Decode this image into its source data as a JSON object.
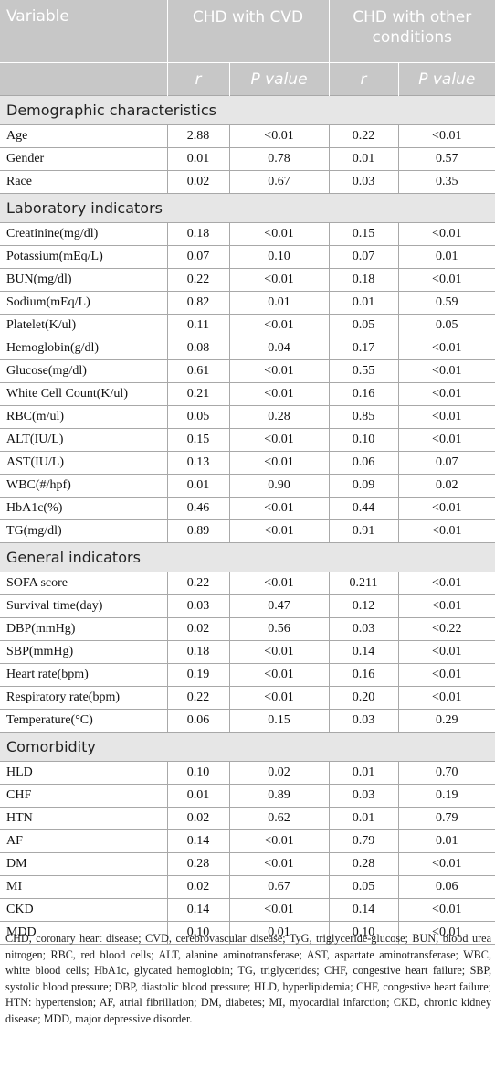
{
  "header": {
    "variable": "Variable",
    "group1": "CHD with CVD",
    "group2": "CHD with other conditions",
    "r": "r",
    "p": "P value"
  },
  "sections": [
    {
      "title": "Demographic characteristics",
      "rows": [
        [
          "Age",
          "2.88",
          "<0.01",
          "0.22",
          "<0.01"
        ],
        [
          "Gender",
          "0.01",
          "0.78",
          "0.01",
          "0.57"
        ],
        [
          "Race",
          "0.02",
          "0.67",
          "0.03",
          "0.35"
        ]
      ]
    },
    {
      "title": "Laboratory indicators",
      "rows": [
        [
          "Creatinine(mg/dl)",
          "0.18",
          "<0.01",
          "0.15",
          "<0.01"
        ],
        [
          "Potassium(mEq/L)",
          "0.07",
          "0.10",
          "0.07",
          "0.01"
        ],
        [
          "BUN(mg/dl)",
          "0.22",
          "<0.01",
          "0.18",
          "<0.01"
        ],
        [
          "Sodium(mEq/L)",
          "0.82",
          "0.01",
          "0.01",
          "0.59"
        ],
        [
          "Platelet(K/ul)",
          "0.11",
          "<0.01",
          "0.05",
          "0.05"
        ],
        [
          "Hemoglobin(g/dl)",
          "0.08",
          "0.04",
          "0.17",
          "<0.01"
        ],
        [
          "Glucose(mg/dl)",
          "0.61",
          "<0.01",
          "0.55",
          "<0.01"
        ],
        [
          "White Cell Count(K/ul)",
          "0.21",
          "<0.01",
          "0.16",
          "<0.01"
        ],
        [
          "RBC(m/ul)",
          "0.05",
          "0.28",
          "0.85",
          "<0.01"
        ],
        [
          "ALT(IU/L)",
          "0.15",
          "<0.01",
          "0.10",
          "<0.01"
        ],
        [
          "AST(IU/L)",
          "0.13",
          "<0.01",
          "0.06",
          "0.07"
        ],
        [
          "WBC(#/hpf)",
          "0.01",
          "0.90",
          "0.09",
          "0.02"
        ],
        [
          "HbA1c(%)",
          "0.46",
          "<0.01",
          "0.44",
          "<0.01"
        ],
        [
          "TG(mg/dl)",
          "0.89",
          "<0.01",
          "0.91",
          "<0.01"
        ]
      ]
    },
    {
      "title": "General indicators",
      "rows": [
        [
          "SOFA score",
          "0.22",
          "<0.01",
          "0.211",
          "<0.01"
        ],
        [
          "Survival time(day)",
          "0.03",
          "0.47",
          "0.12",
          "<0.01"
        ],
        [
          "DBP(mmHg)",
          "0.02",
          "0.56",
          "0.03",
          "<0.22"
        ],
        [
          "SBP(mmHg)",
          "0.18",
          "<0.01",
          "0.14",
          "<0.01"
        ],
        [
          "Heart rate(bpm)",
          "0.19",
          "<0.01",
          "0.16",
          "<0.01"
        ],
        [
          "Respiratory rate(bpm)",
          "0.22",
          "<0.01",
          "0.20",
          "<0.01"
        ],
        [
          "Temperature(°C)",
          "0.06",
          "0.15",
          "0.03",
          "0.29"
        ]
      ]
    },
    {
      "title": "Comorbidity",
      "rows": [
        [
          "HLD",
          "0.10",
          "0.02",
          "0.01",
          "0.70"
        ],
        [
          "CHF",
          "0.01",
          "0.89",
          "0.03",
          "0.19"
        ],
        [
          "HTN",
          "0.02",
          "0.62",
          "0.01",
          "0.79"
        ],
        [
          "AF",
          "0.14",
          "<0.01",
          "0.79",
          "0.01"
        ],
        [
          "DM",
          "0.28",
          "<0.01",
          "0.28",
          "<0.01"
        ],
        [
          "MI",
          "0.02",
          "0.67",
          "0.05",
          "0.06"
        ],
        [
          "CKD",
          "0.14",
          "<0.01",
          "0.14",
          "<0.01"
        ],
        [
          "MDD",
          "0.10",
          "0.01",
          "0.10",
          "<0.01"
        ]
      ]
    }
  ],
  "footnote": "CHD, coronary heart disease; CVD, cerebrovascular disease; TyG, triglyceride-glucose; BUN, blood urea nitrogen; RBC, red blood cells; ALT, alanine aminotransferase; AST, aspartate aminotransferase; WBC, white blood cells; HbA1c, glycated hemoglobin; TG, triglycerides; CHF, congestive heart failure; SBP, systolic blood pressure; DBP, diastolic blood pressure; HLD, hyperlipidemia; CHF, congestive heart failure; HTN: hypertension; AF, atrial fibrillation; DM, diabetes; MI, myocardial infarction; CKD, chronic kidney disease; MDD, major depressive disorder."
}
